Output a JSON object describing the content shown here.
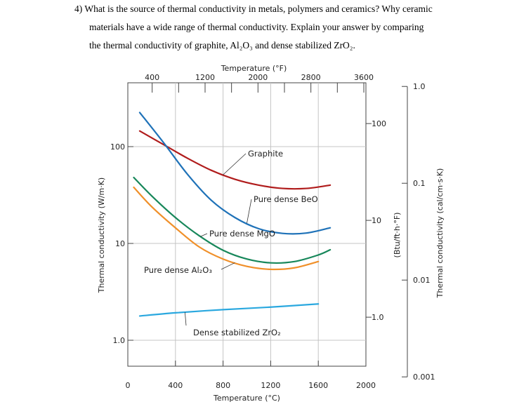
{
  "question": {
    "line1": "4)  What is the source of thermal conductivity in metals, polymers and ceramics? Why ceramic",
    "line2": "materials have a wide range of thermal conductivity. Explain your answer by comparing",
    "line3": "the thermal conductivity of graphite, Al₂O₃ and dense stabilized ZrO₂."
  },
  "chart_data": {
    "type": "line",
    "title": "",
    "x_scale": "linear",
    "y_scale": "log",
    "xlabel": "Temperature (°C)",
    "xlim": [
      0,
      2000
    ],
    "xticks": [
      {
        "value": 0,
        "label": "0"
      },
      {
        "value": 400,
        "label": "400"
      },
      {
        "value": 800,
        "label": "800"
      },
      {
        "value": 1200,
        "label": "1200"
      },
      {
        "value": 1600,
        "label": "1600"
      },
      {
        "value": 2000,
        "label": "2000"
      }
    ],
    "x_top": {
      "label": "Temperature (°F)",
      "ticks": [
        {
          "value": 400,
          "label": "400"
        },
        {
          "value": 1200,
          "label": "1200"
        },
        {
          "value": 2000,
          "label": "2000"
        },
        {
          "value": 2800,
          "label": "2800"
        },
        {
          "value": 3600,
          "label": "3600"
        }
      ],
      "unlabeled_ticks": [
        800,
        1600,
        2400,
        3200
      ]
    },
    "ylabel": "Thermal conductivity (W/m·K)",
    "ylim": [
      0.45,
      330
    ],
    "yticks": [
      {
        "value": 1,
        "label": "1.0"
      },
      {
        "value": 10,
        "label": "10"
      },
      {
        "value": 100,
        "label": "100"
      }
    ],
    "y_right_inner": {
      "label": "(Btu/ft·h·°F)",
      "ticks": [
        {
          "value": 1,
          "label": "1.0"
        },
        {
          "value": 10,
          "label": "10"
        },
        {
          "value": 100,
          "label": "100"
        }
      ]
    },
    "y_right_outer": {
      "label": "Thermal conductivity (cal/cm·s·K)",
      "ticks": [
        {
          "value": 0.001,
          "label": "0.001"
        },
        {
          "value": 0.01,
          "label": "0.01"
        },
        {
          "value": 0.1,
          "label": "0.1"
        },
        {
          "value": 1.0,
          "label": "1.0"
        }
      ]
    },
    "grid": true,
    "colors": {
      "graphite": "#b01c1c",
      "beo": "#1f72b8",
      "mgo": "#17875a",
      "al2o3": "#f0902a",
      "zro2": "#2aa8df"
    },
    "series": [
      {
        "name": "Graphite",
        "key": "graphite",
        "x": [
          100,
          300,
          500,
          700,
          900,
          1100,
          1300,
          1500,
          1700
        ],
        "y": [
          145,
          105,
          76,
          57,
          46,
          40,
          37,
          37,
          40
        ]
      },
      {
        "name": "Pure dense BeO",
        "key": "beo",
        "x": [
          100,
          300,
          500,
          700,
          900,
          1100,
          1300,
          1500,
          1700
        ],
        "y": [
          225,
          110,
          52,
          28,
          18.5,
          14.2,
          12.7,
          12.8,
          14.5
        ]
      },
      {
        "name": "Pure dense MgO",
        "key": "mgo",
        "x": [
          50,
          200,
          400,
          600,
          800,
          1000,
          1200,
          1400,
          1600,
          1700
        ],
        "y": [
          48,
          31,
          18.5,
          12,
          8.5,
          6.9,
          6.3,
          6.5,
          7.6,
          8.6
        ]
      },
      {
        "name": "Pure dense Al₂O₃",
        "key": "al2o3",
        "x": [
          50,
          200,
          400,
          600,
          800,
          1000,
          1200,
          1400,
          1600
        ],
        "y": [
          38,
          24,
          14.5,
          9.2,
          6.9,
          5.8,
          5.4,
          5.6,
          6.5
        ]
      },
      {
        "name": "Dense stabilized ZrO₂",
        "key": "zro2",
        "x": [
          100,
          400,
          800,
          1200,
          1600
        ],
        "y": [
          1.78,
          1.92,
          2.07,
          2.2,
          2.37
        ]
      }
    ],
    "annotations": [
      {
        "text": "Graphite",
        "series": "graphite"
      },
      {
        "text": "Pure dense BeO",
        "series": "beo"
      },
      {
        "text": "Pure dense MgO",
        "series": "mgo"
      },
      {
        "text": "Pure dense Al₂O₃",
        "series": "al2o3"
      },
      {
        "text": "Dense stabilized ZrO₂",
        "series": "zro2"
      }
    ]
  }
}
